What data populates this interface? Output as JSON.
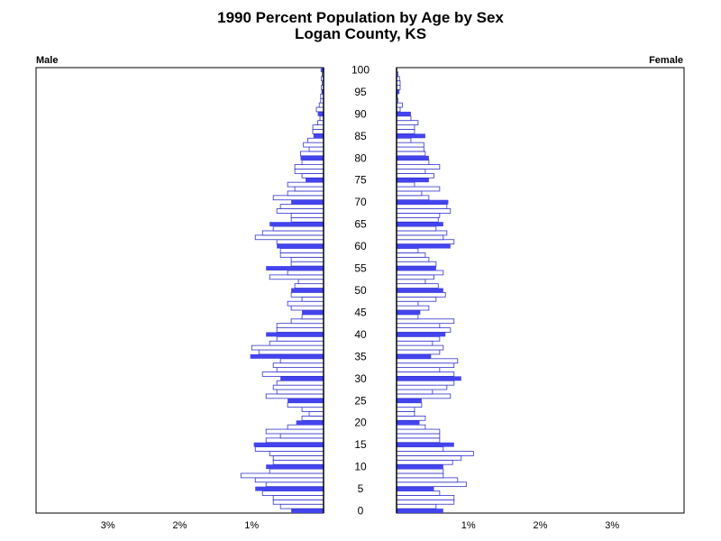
{
  "chart_data": {
    "type": "bar",
    "title": "1990 Percent Population by Age by Sex",
    "subtitle": "Logan County, KS",
    "left_label": "Male",
    "right_label": "Female",
    "x_tick_labels_left": [
      "3%",
      "2%",
      "1%"
    ],
    "x_tick_labels_right": [
      "1%",
      "2%",
      "3%"
    ],
    "x_ticks": [
      1,
      2,
      3
    ],
    "xlim": [
      0,
      4
    ],
    "ylim": [
      0,
      100
    ],
    "age_labels": [
      "100",
      "95",
      "90",
      "85",
      "80",
      "75",
      "70",
      "65",
      "60",
      "55",
      "50",
      "45",
      "40",
      "35",
      "30",
      "25",
      "20",
      "15",
      "10",
      "5",
      "0"
    ],
    "highlight_every": 5,
    "colors": {
      "highlight": "#4444ee",
      "outline": "#3333cc",
      "axis": "#000000",
      "fill": "#ffffff"
    },
    "ages": [
      0,
      1,
      2,
      3,
      4,
      5,
      6,
      7,
      8,
      9,
      10,
      11,
      12,
      13,
      14,
      15,
      16,
      17,
      18,
      19,
      20,
      21,
      22,
      23,
      24,
      25,
      26,
      27,
      28,
      29,
      30,
      31,
      32,
      33,
      34,
      35,
      36,
      37,
      38,
      39,
      40,
      41,
      42,
      43,
      44,
      45,
      46,
      47,
      48,
      49,
      50,
      51,
      52,
      53,
      54,
      55,
      56,
      57,
      58,
      59,
      60,
      61,
      62,
      63,
      64,
      65,
      66,
      67,
      68,
      69,
      70,
      71,
      72,
      73,
      74,
      75,
      76,
      77,
      78,
      79,
      80,
      81,
      82,
      83,
      84,
      85,
      86,
      87,
      88,
      89,
      90,
      91,
      92,
      93,
      94,
      95,
      96,
      97,
      98,
      99,
      100
    ],
    "series": [
      {
        "name": "Male",
        "values": [
          0.45,
          0.6,
          0.7,
          0.7,
          0.85,
          0.95,
          0.8,
          0.95,
          1.15,
          0.75,
          0.8,
          0.7,
          0.7,
          0.75,
          0.95,
          0.97,
          0.8,
          0.6,
          0.8,
          0.5,
          0.38,
          0.3,
          0.2,
          0.3,
          0.5,
          0.5,
          0.8,
          0.65,
          0.7,
          0.65,
          0.6,
          0.85,
          0.65,
          0.7,
          0.6,
          1.02,
          0.9,
          1.0,
          0.75,
          0.65,
          0.8,
          0.65,
          0.65,
          0.45,
          0.3,
          0.3,
          0.45,
          0.5,
          0.3,
          0.45,
          0.45,
          0.4,
          0.35,
          0.75,
          0.5,
          0.8,
          0.45,
          0.45,
          0.6,
          0.6,
          0.65,
          0.65,
          0.95,
          0.85,
          0.7,
          0.75,
          0.45,
          0.45,
          0.65,
          0.6,
          0.45,
          0.7,
          0.5,
          0.4,
          0.5,
          0.25,
          0.3,
          0.4,
          0.4,
          0.3,
          0.32,
          0.32,
          0.2,
          0.28,
          0.22,
          0.14,
          0.15,
          0.15,
          0.08,
          0.05,
          0.08,
          0.1,
          0.06,
          0.04,
          0.04,
          0.03,
          0.03,
          0.02,
          0.03,
          0.02,
          0.04
        ]
      },
      {
        "name": "Female",
        "values": [
          0.65,
          0.55,
          0.8,
          0.8,
          0.6,
          0.52,
          0.97,
          0.85,
          0.65,
          0.65,
          0.65,
          0.78,
          0.9,
          1.07,
          0.65,
          0.8,
          0.6,
          0.6,
          0.6,
          0.4,
          0.32,
          0.4,
          0.25,
          0.25,
          0.35,
          0.35,
          0.75,
          0.5,
          0.7,
          0.8,
          0.9,
          0.8,
          0.6,
          0.8,
          0.85,
          0.48,
          0.6,
          0.65,
          0.5,
          0.6,
          0.68,
          0.75,
          0.6,
          0.8,
          0.3,
          0.33,
          0.45,
          0.3,
          0.55,
          0.68,
          0.65,
          0.58,
          0.4,
          0.52,
          0.65,
          0.55,
          0.55,
          0.45,
          0.4,
          0.3,
          0.75,
          0.8,
          0.65,
          0.7,
          0.55,
          0.65,
          0.58,
          0.6,
          0.75,
          0.7,
          0.72,
          0.45,
          0.35,
          0.6,
          0.25,
          0.45,
          0.52,
          0.4,
          0.6,
          0.45,
          0.45,
          0.4,
          0.38,
          0.38,
          0.2,
          0.4,
          0.25,
          0.25,
          0.3,
          0.2,
          0.2,
          0.05,
          0.08,
          0.02,
          0.01,
          0.04,
          0.05,
          0.05,
          0.04,
          0.02,
          0.0
        ]
      }
    ]
  }
}
